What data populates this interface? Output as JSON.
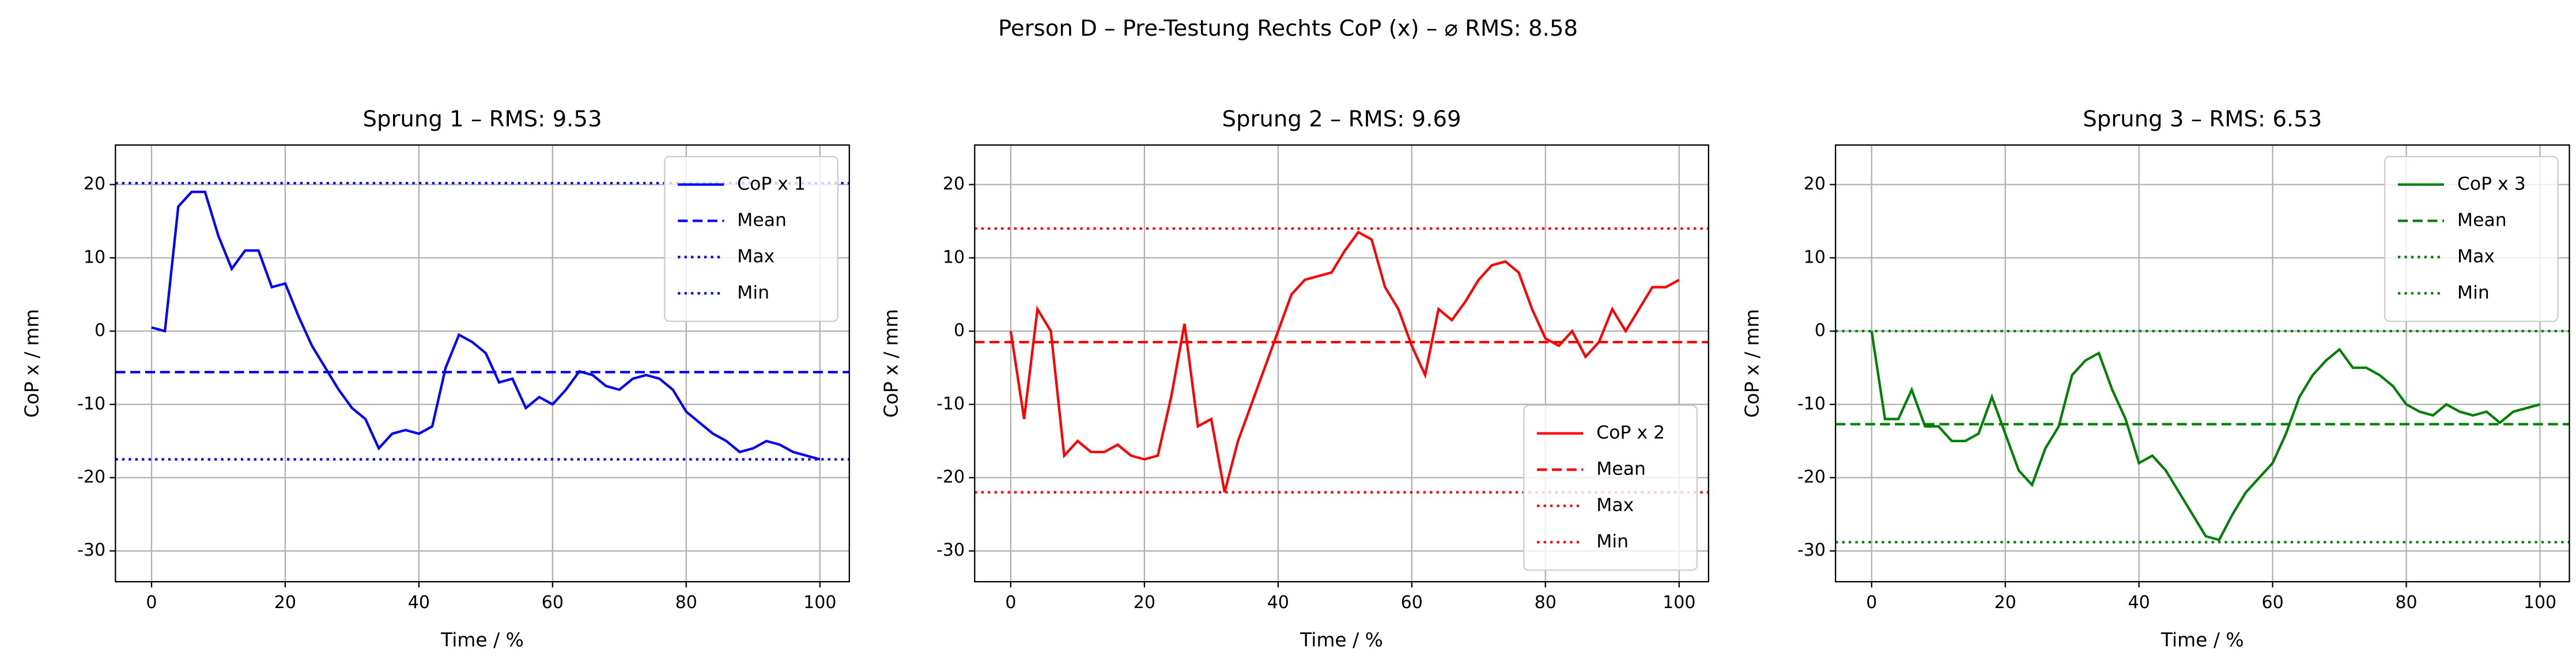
{
  "title": "Person D – Pre-Testung Rechts CoP (x) – ⌀ RMS: 8.58",
  "chart_data": [
    {
      "type": "line",
      "title": "Sprung 1 – RMS: 9.53",
      "x_label": "Time / %",
      "y_label": "CoP x / mm",
      "xlim": [
        -5.4,
        104.4
      ],
      "ylim": [
        -34.2,
        25.4
      ],
      "xticks": [
        0,
        20,
        40,
        60,
        80,
        100
      ],
      "yticks": [
        -30,
        -20,
        -10,
        0,
        10,
        20
      ],
      "grid": true,
      "legend": "upper right",
      "x": [
        0,
        2,
        4,
        6,
        8,
        10,
        12,
        14,
        16,
        18,
        20,
        22,
        24,
        26,
        28,
        30,
        32,
        34,
        36,
        38,
        40,
        42,
        44,
        46,
        48,
        50,
        52,
        54,
        56,
        58,
        60,
        62,
        64,
        66,
        68,
        70,
        72,
        74,
        76,
        78,
        80,
        82,
        84,
        86,
        88,
        90,
        92,
        94,
        96,
        98,
        100
      ],
      "series": [
        {
          "name": "CoP x 1",
          "color": "#0000ff",
          "linestyle": "solid",
          "values": [
            0.5,
            0,
            17,
            19,
            19,
            13,
            8.5,
            11,
            11,
            6,
            6.5,
            2,
            -2,
            -5,
            -8,
            -10.5,
            -12,
            -16,
            -14,
            -13.5,
            -14,
            -13,
            -5,
            -0.5,
            -1.5,
            -3,
            -7,
            -6.5,
            -10.5,
            -9,
            -10,
            -8,
            -5.5,
            -6,
            -7.5,
            -8,
            -6.5,
            -6,
            -6.5,
            -8,
            -11,
            -12.5,
            -14,
            -15,
            -16.5,
            -16,
            -15,
            -15.5,
            -16.5,
            -17,
            -17.5
          ]
        },
        {
          "name": "Mean",
          "color": "#0000ff",
          "linestyle": "dashed",
          "y": -5.6
        },
        {
          "name": "Max",
          "color": "#0000ff",
          "linestyle": "dotted",
          "y": 20.2
        },
        {
          "name": "Min",
          "color": "#0000ff",
          "linestyle": "dotted",
          "y": -17.5
        }
      ]
    },
    {
      "type": "line",
      "title": "Sprung 2 – RMS: 9.69",
      "x_label": "Time / %",
      "y_label": "CoP x / mm",
      "xlim": [
        -5.4,
        104.4
      ],
      "ylim": [
        -34.2,
        25.4
      ],
      "xticks": [
        0,
        20,
        40,
        60,
        80,
        100
      ],
      "yticks": [
        -30,
        -20,
        -10,
        0,
        10,
        20
      ],
      "grid": true,
      "legend": "lower right",
      "x": [
        0,
        2,
        4,
        6,
        8,
        10,
        12,
        14,
        16,
        18,
        20,
        22,
        24,
        26,
        28,
        30,
        32,
        34,
        36,
        38,
        40,
        42,
        44,
        46,
        48,
        50,
        52,
        54,
        56,
        58,
        60,
        62,
        64,
        66,
        68,
        70,
        72,
        74,
        76,
        78,
        80,
        82,
        84,
        86,
        88,
        90,
        92,
        94,
        96,
        98,
        100
      ],
      "series": [
        {
          "name": "CoP x 2",
          "color": "#ff0000",
          "linestyle": "solid",
          "values": [
            0,
            -12,
            3,
            0,
            -17,
            -15,
            -16.5,
            -16.5,
            -15.5,
            -17,
            -17.5,
            -17,
            -9,
            1,
            -13,
            -12,
            -22,
            -15,
            -10,
            -5,
            0,
            5,
            7,
            7.5,
            8,
            11,
            13.5,
            12.5,
            6,
            3,
            -2,
            -6,
            3,
            1.5,
            4,
            7,
            9,
            9.5,
            8,
            3,
            -1,
            -2,
            0,
            -3.5,
            -1.5,
            3,
            0,
            3,
            6,
            6,
            7
          ]
        },
        {
          "name": "Mean",
          "color": "#ff0000",
          "linestyle": "dashed",
          "y": -1.5
        },
        {
          "name": "Max",
          "color": "#ff0000",
          "linestyle": "dotted",
          "y": 14
        },
        {
          "name": "Min",
          "color": "#ff0000",
          "linestyle": "dotted",
          "y": -22
        }
      ]
    },
    {
      "type": "line",
      "title": "Sprung 3 – RMS: 6.53",
      "x_label": "Time / %",
      "y_label": "CoP x / mm",
      "xlim": [
        -5.4,
        104.4
      ],
      "ylim": [
        -34.2,
        25.4
      ],
      "xticks": [
        0,
        20,
        40,
        60,
        80,
        100
      ],
      "yticks": [
        -30,
        -20,
        -10,
        0,
        10,
        20
      ],
      "grid": true,
      "legend": "upper right",
      "x": [
        0,
        2,
        4,
        6,
        8,
        10,
        12,
        14,
        16,
        18,
        20,
        22,
        24,
        26,
        28,
        30,
        32,
        34,
        36,
        38,
        40,
        42,
        44,
        46,
        48,
        50,
        52,
        54,
        56,
        58,
        60,
        62,
        64,
        66,
        68,
        70,
        72,
        74,
        76,
        78,
        80,
        82,
        84,
        86,
        88,
        90,
        92,
        94,
        96,
        98,
        100
      ],
      "series": [
        {
          "name": "CoP x 3",
          "color": "#008000",
          "linestyle": "solid",
          "values": [
            0,
            -12,
            -12,
            -8,
            -13,
            -13,
            -15,
            -15,
            -14,
            -9,
            -14,
            -19,
            -21,
            -16,
            -13,
            -6,
            -4,
            -3,
            -8,
            -12,
            -18,
            -17,
            -19,
            -22,
            -25,
            -28,
            -28.5,
            -25,
            -22,
            -20,
            -18,
            -14,
            -9,
            -6,
            -4,
            -2.5,
            -5,
            -5,
            -6,
            -7.5,
            -10,
            -11,
            -11.5,
            -10,
            -11,
            -11.5,
            -11,
            -12.5,
            -11,
            -10.5,
            -10
          ]
        },
        {
          "name": "Mean",
          "color": "#008000",
          "linestyle": "dashed",
          "y": -12.7
        },
        {
          "name": "Max",
          "color": "#008000",
          "linestyle": "dotted",
          "y": 0
        },
        {
          "name": "Min",
          "color": "#008000",
          "linestyle": "dotted",
          "y": -28.8
        }
      ]
    }
  ]
}
